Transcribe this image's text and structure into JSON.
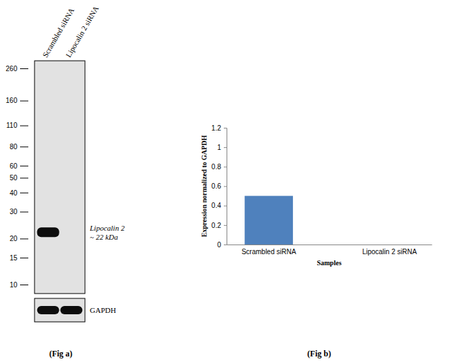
{
  "chart_data": {
    "type": "bar",
    "categories": [
      "Scrambled siRNA",
      "Lipocalin 2 siRNA"
    ],
    "values": [
      0.5,
      0
    ],
    "color": "#4f81bd",
    "ylim": [
      0,
      1.2
    ],
    "yticks": [
      0,
      0.2,
      0.4,
      0.6,
      0.8,
      1,
      1.2
    ],
    "x_label": "Samples",
    "y_label": "Expression normalized to GAPDH",
    "grid": false
  },
  "blot": {
    "lanes": [
      "Scrambled siRNA",
      "Lipocalin 2 siRNA"
    ],
    "markers": [
      260,
      160,
      110,
      80,
      60,
      50,
      40,
      30,
      20,
      15,
      10
    ],
    "target": {
      "label": "Lipocalin 2",
      "sublabel": "~ 22 kDa",
      "kda": 22,
      "lanes": [
        true,
        false
      ]
    },
    "loading_control": {
      "label": "GAPDH",
      "lanes": [
        true,
        true
      ]
    }
  },
  "panel_labels": [
    "(Fig a)",
    "(Fig b)"
  ]
}
